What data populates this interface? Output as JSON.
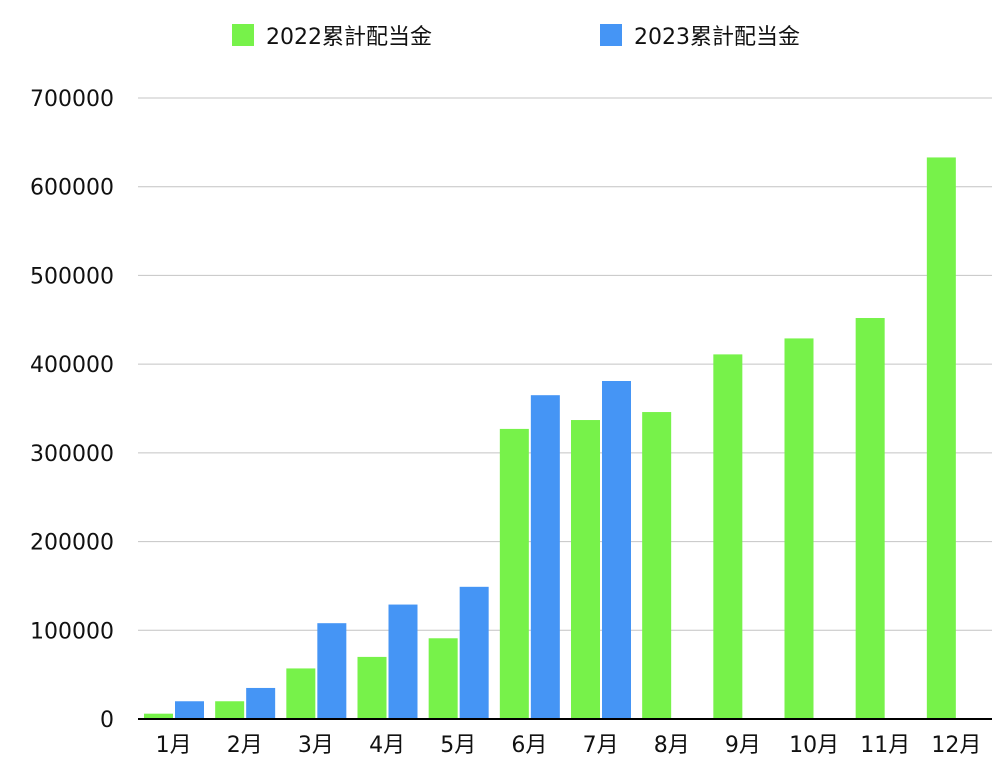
{
  "chart_data": {
    "type": "bar",
    "categories": [
      "1月",
      "2月",
      "3月",
      "4月",
      "5月",
      "6月",
      "7月",
      "8月",
      "9月",
      "10月",
      "11月",
      "12月"
    ],
    "series": [
      {
        "name": "2022累計配当金",
        "color": "#77f24a",
        "values": [
          6000,
          20000,
          57000,
          70000,
          91000,
          327000,
          337000,
          346000,
          411000,
          429000,
          452000,
          633000
        ]
      },
      {
        "name": "2023累計配当金",
        "color": "#4595f5",
        "values": [
          20000,
          35000,
          108000,
          129000,
          149000,
          365000,
          381000,
          null,
          null,
          null,
          null,
          null
        ]
      }
    ],
    "yticks": [
      "0",
      "100000",
      "200000",
      "300000",
      "400000",
      "500000",
      "600000",
      "700000"
    ],
    "ylim": [
      0,
      700000
    ],
    "grid": true,
    "legend_position": "top"
  }
}
